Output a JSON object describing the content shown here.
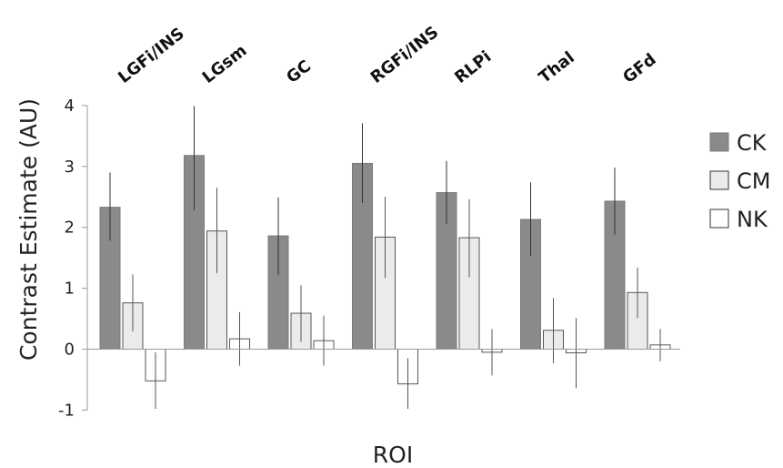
{
  "chart_data": {
    "type": "bar",
    "title": "",
    "xlabel": "ROI",
    "ylabel": "Contrast Estimate (AU)",
    "ylim": [
      -1,
      4
    ],
    "yticks": [
      -1,
      0,
      1,
      2,
      3,
      4
    ],
    "grid": false,
    "legend_position": "right",
    "categories": [
      "LGFi/INS",
      "LGsm",
      "GC",
      "RGFi/INS",
      "RLPi",
      "Thal",
      "GFd"
    ],
    "series": [
      {
        "name": "CK",
        "color": "#8a8a8a",
        "values": [
          2.33,
          3.18,
          1.86,
          3.05,
          2.57,
          2.13,
          2.43
        ],
        "err_low": [
          1.78,
          2.28,
          1.22,
          2.4,
          2.05,
          1.53,
          1.88
        ],
        "err_high": [
          2.9,
          3.99,
          2.49,
          3.71,
          3.09,
          2.74,
          2.98
        ]
      },
      {
        "name": "CM",
        "color": "#ebebeb",
        "values": [
          0.76,
          1.94,
          0.59,
          1.84,
          1.83,
          0.31,
          0.93
        ],
        "err_low": [
          0.29,
          1.25,
          0.12,
          1.17,
          1.18,
          -0.23,
          0.51
        ],
        "err_high": [
          1.23,
          2.65,
          1.05,
          2.5,
          2.46,
          0.84,
          1.34
        ]
      },
      {
        "name": "NK",
        "color": "#ffffff",
        "values": [
          -0.52,
          0.17,
          0.14,
          -0.57,
          -0.05,
          -0.06,
          0.07
        ],
        "err_low": [
          -0.98,
          -0.27,
          -0.27,
          -0.98,
          -0.43,
          -0.64,
          -0.2
        ],
        "err_high": [
          -0.05,
          0.61,
          0.55,
          -0.15,
          0.33,
          0.51,
          0.33
        ]
      }
    ]
  }
}
